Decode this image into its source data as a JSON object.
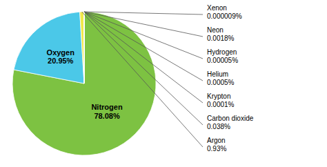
{
  "chart_data": {
    "type": "pie",
    "categories": [
      "Nitrogen",
      "Oxygen",
      "Argon",
      "Carbon dioxide",
      "Krypton",
      "Helium",
      "Hydrogen",
      "Neon",
      "Xenon"
    ],
    "values": [
      78.08,
      20.95,
      0.93,
      0.038,
      0.0001,
      0.0005,
      5e-05,
      0.0018,
      9e-06
    ],
    "value_labels": [
      "78.08%",
      "20.95%",
      "0.93%",
      "0.038%",
      "0.0001%",
      "0.0005%",
      "0.00005%",
      "0.0018%",
      "0.000009%"
    ],
    "colors": [
      "#7dc242",
      "#4bc8e8",
      "#f0e84a",
      "#7dc242",
      "#7dc242",
      "#7dc242",
      "#7dc242",
      "#7dc242",
      "#7dc242"
    ],
    "data_labels": true
  }
}
